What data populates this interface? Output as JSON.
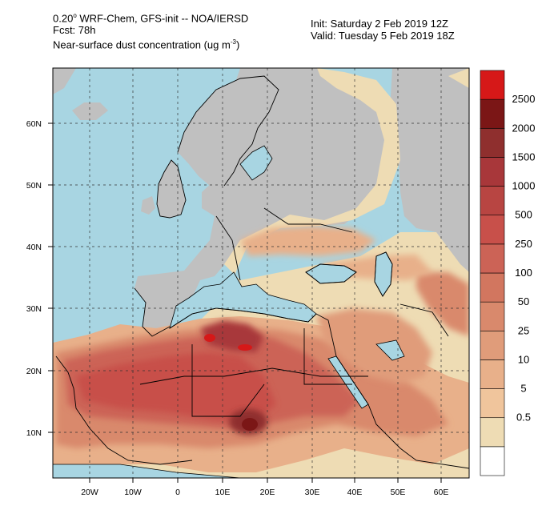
{
  "header": {
    "line1_prefix": "0.20",
    "line1_deg": "o",
    "line1_suffix": " WRF-Chem, GFS-init -- NOA/IERSD",
    "line2": "Fcst: 78h",
    "line3_prefix": "Near-surface dust concentration (ug m",
    "line3_sup": "-3",
    "line3_suffix": ")",
    "init": "Init: Saturday 2 Feb 2019  12Z",
    "valid": "Valid: Tuesday 5 Feb 2019  18Z"
  },
  "map": {
    "lon_ticks": [
      "20W",
      "10W",
      "0",
      "10E",
      "20E",
      "30E",
      "40E",
      "50E",
      "60E"
    ],
    "lat_ticks": [
      "60N",
      "50N",
      "40N",
      "30N",
      "20N",
      "10N"
    ],
    "colors": {
      "ocean": "#a8d5e2",
      "land_nodata": "#c0c0c0",
      "border": "#000000"
    }
  },
  "colorbar": {
    "labels": [
      "2500",
      "2000",
      "1500",
      "1000",
      "500",
      "250",
      "100",
      "50",
      "25",
      "10",
      "5",
      "0.5"
    ],
    "colors": [
      "#ffffff",
      "#eedcb4",
      "#f0c59c",
      "#e8b08a",
      "#e09c7a",
      "#d9896c",
      "#d2765f",
      "#cc6356",
      "#c8504a",
      "#b84542",
      "#a8373a",
      "#8f2f2e",
      "#7b1616",
      "#d61818"
    ]
  }
}
